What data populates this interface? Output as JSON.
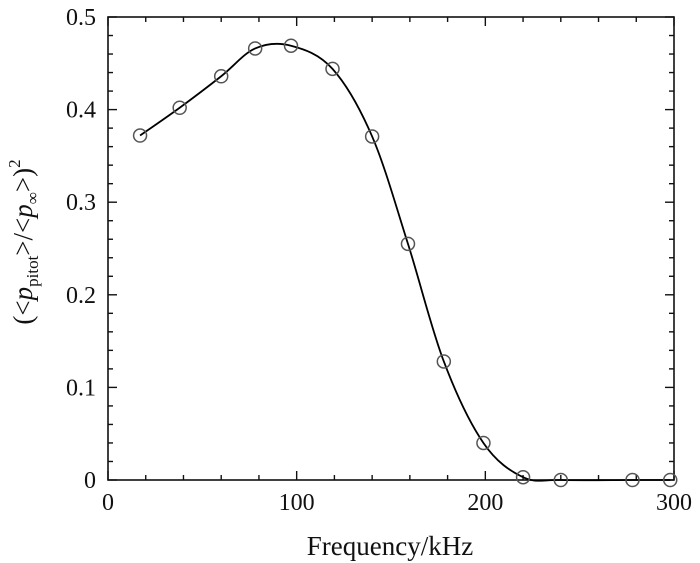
{
  "chart_data": {
    "type": "line",
    "xlabel": "Frequency/kHz",
    "ylabel": {
      "open": "(<",
      "var1": "p",
      "sub1": "pitot",
      "mid": ">/<",
      "var2": "p",
      "sub2": "∞",
      "close": ">)",
      "sup": "2"
    },
    "xlim": [
      0,
      300
    ],
    "ylim": [
      0,
      0.5
    ],
    "x_ticks": [
      0,
      100,
      200,
      300
    ],
    "x_tick_labels": [
      "0",
      "100",
      "200",
      "300"
    ],
    "y_ticks": [
      0,
      0.1,
      0.2,
      0.3,
      0.4,
      0.5
    ],
    "y_tick_labels": [
      "0",
      "0.1",
      "0.2",
      "0.3",
      "0.4",
      "0.5"
    ],
    "grid": false,
    "marker": "open-circle",
    "colors": {
      "line": "#000000",
      "marker": "#555555"
    },
    "series": [
      {
        "x": [
          17,
          38,
          60,
          78,
          97,
          119,
          140,
          159,
          178,
          199,
          220,
          240,
          278,
          298
        ],
        "y": [
          0.372,
          0.402,
          0.436,
          0.466,
          0.469,
          0.444,
          0.371,
          0.255,
          0.128,
          0.04,
          0.003,
          0.0,
          0.0,
          0.0
        ]
      }
    ]
  }
}
